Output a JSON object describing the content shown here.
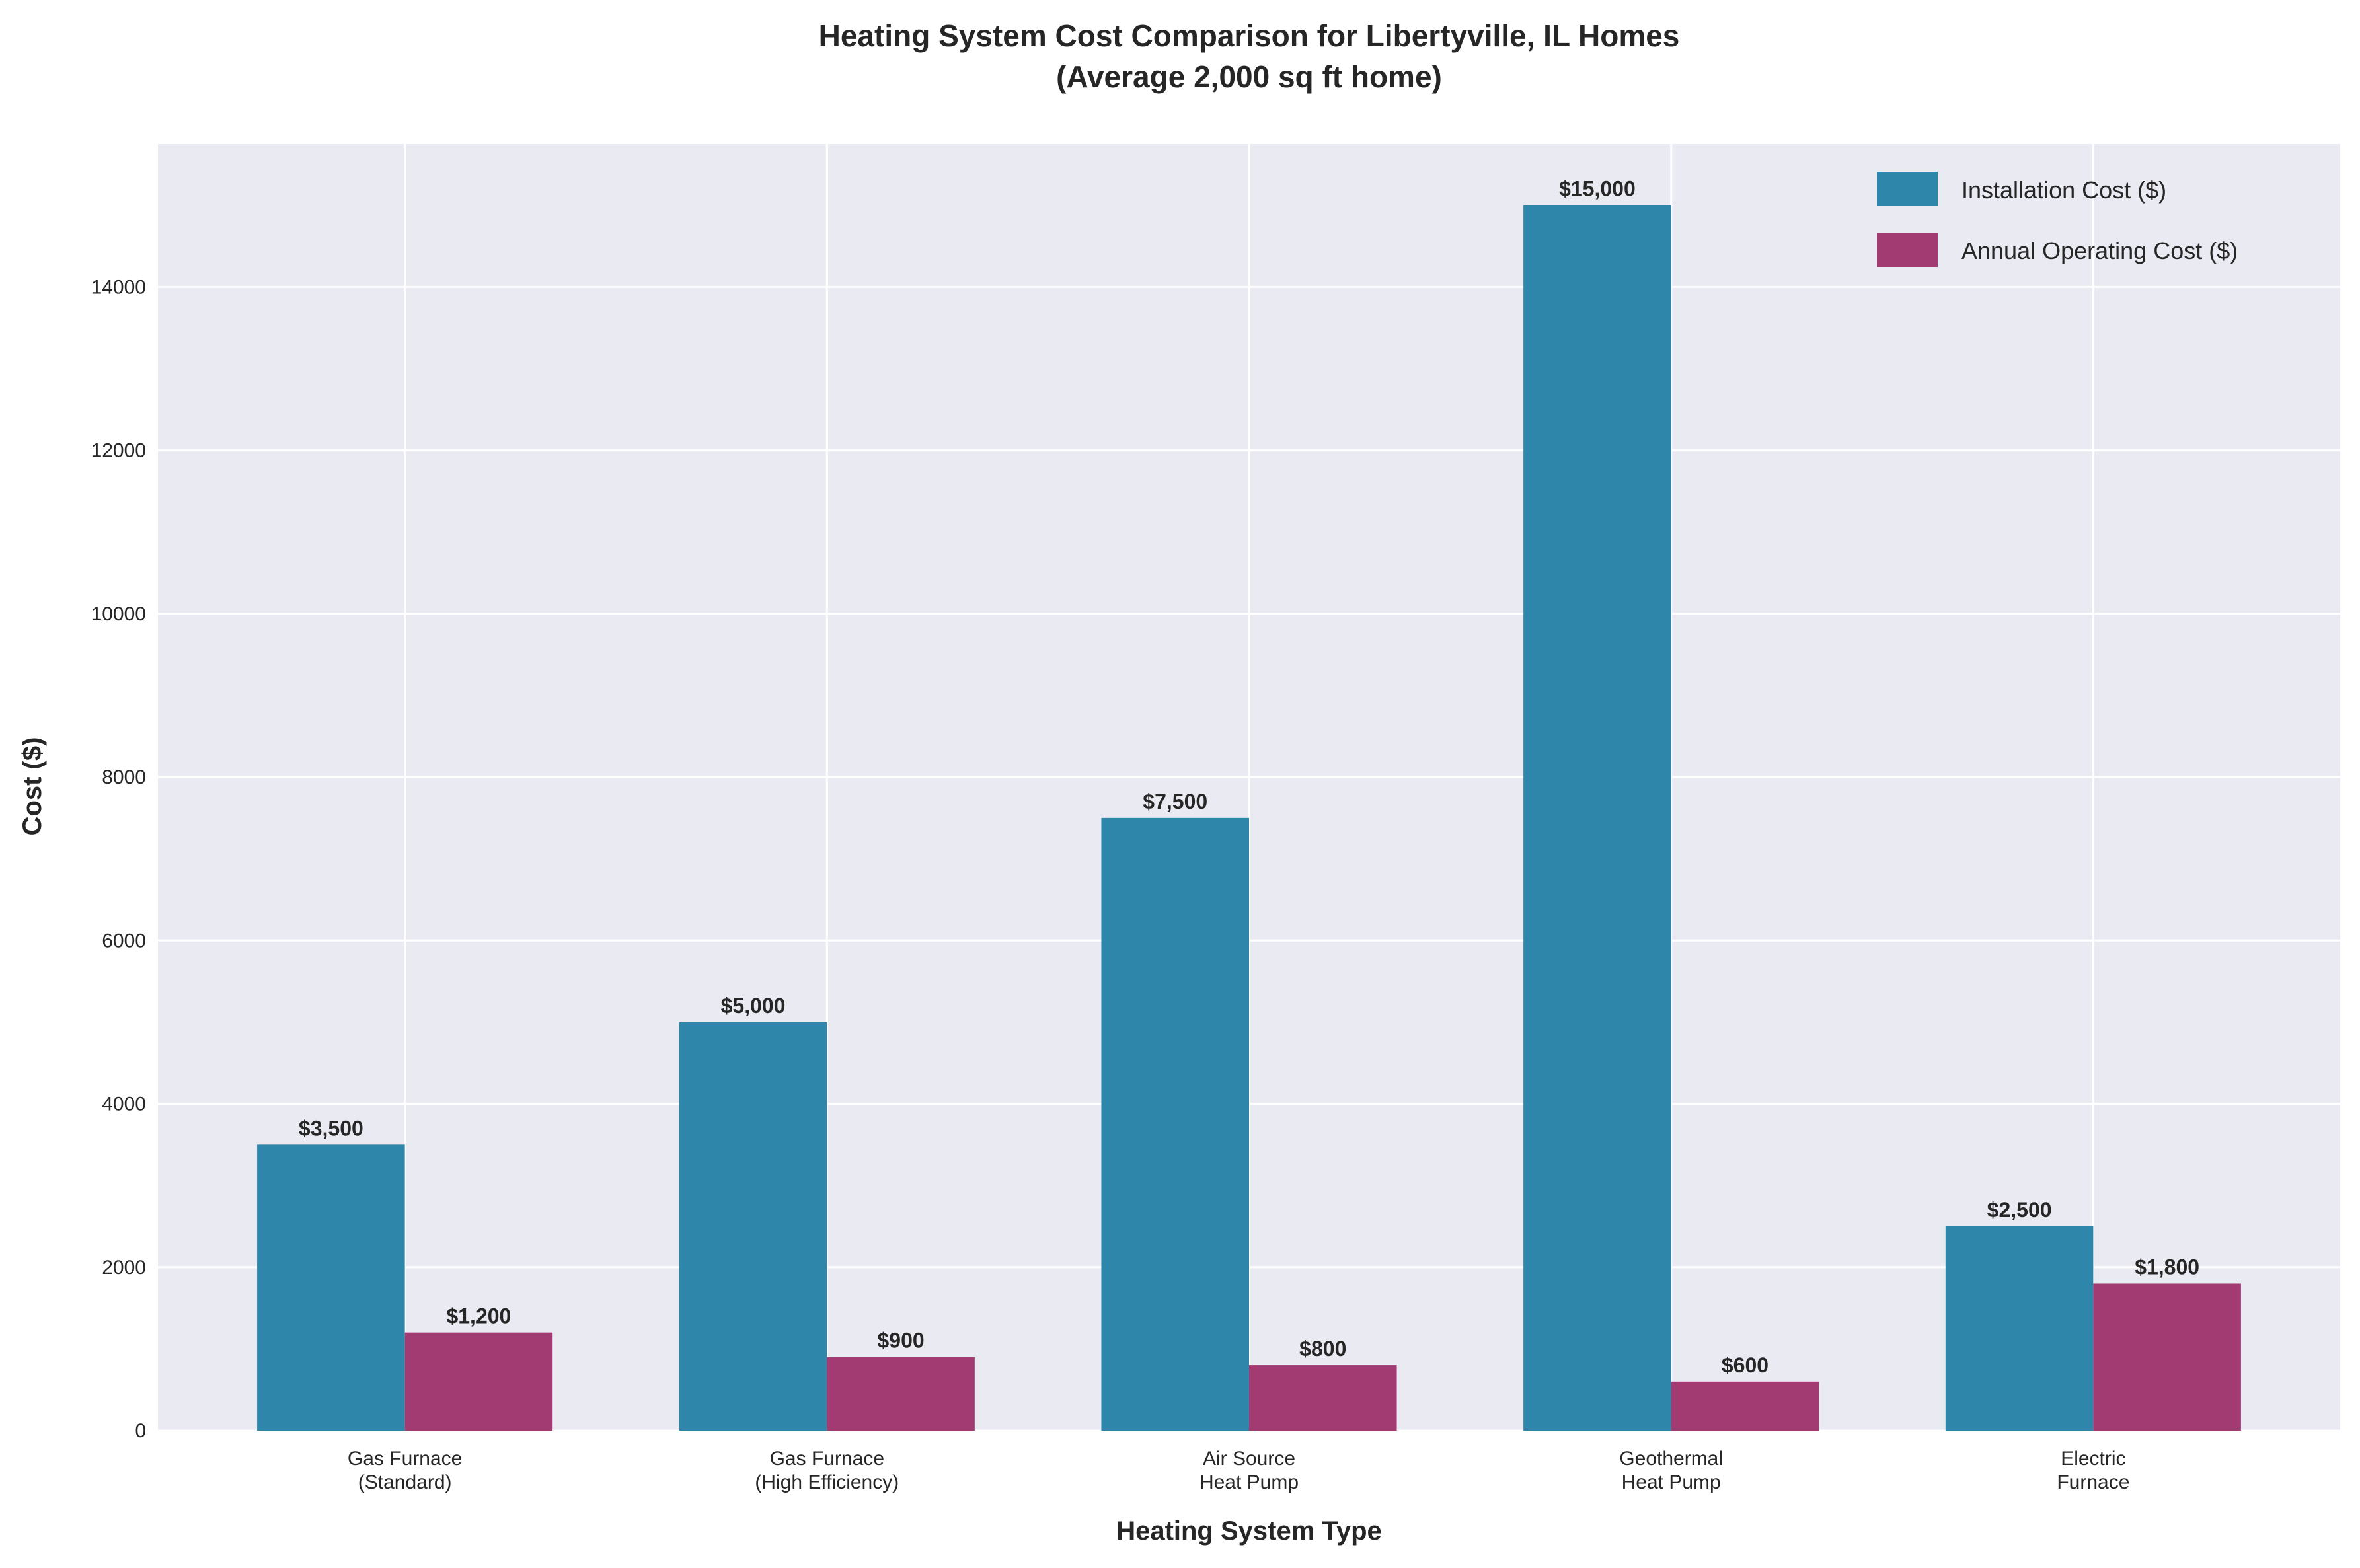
{
  "chart_data": {
    "type": "bar",
    "title": [
      "Heating System Cost Comparison for Libertyville, IL Homes",
      "(Average 2,000 sq ft home)"
    ],
    "xlabel": "Heating System Type",
    "ylabel": "Cost ($)",
    "categories": [
      [
        "Gas Furnace",
        "(Standard)"
      ],
      [
        "Gas Furnace",
        "(High Efficiency)"
      ],
      [
        "Air Source",
        "Heat Pump"
      ],
      [
        "Geothermal",
        "Heat Pump"
      ],
      [
        "Electric",
        "Furnace"
      ]
    ],
    "series": [
      {
        "name": "Installation Cost ($)",
        "values": [
          3500,
          5000,
          7500,
          15000,
          2500
        ],
        "labels": [
          "$3,500",
          "$5,000",
          "$7,500",
          "$15,000",
          "$2,500"
        ],
        "color": "#2e86ab"
      },
      {
        "name": "Annual Operating Cost ($)",
        "values": [
          1200,
          900,
          800,
          600,
          1800
        ],
        "labels": [
          "$1,200",
          "$900",
          "$800",
          "$600",
          "$1,800"
        ],
        "color": "#a23b72"
      }
    ],
    "ylim": [
      0,
      15750
    ],
    "yticks": [
      "0",
      "2000",
      "4000",
      "6000",
      "8000",
      "10000",
      "12000",
      "14000"
    ],
    "ytick_values": [
      0,
      2000,
      4000,
      6000,
      8000,
      10000,
      12000,
      14000
    ],
    "grid": true,
    "legend_position": "top-right",
    "background": "#eaeaf2"
  }
}
